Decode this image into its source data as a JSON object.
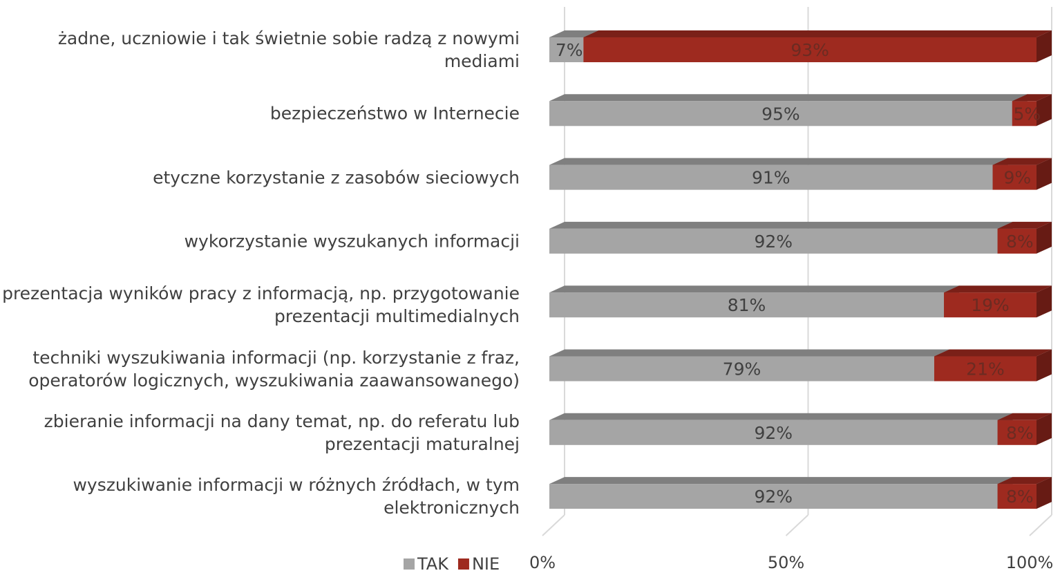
{
  "chart_data": {
    "type": "bar",
    "orientation": "horizontal",
    "stacked": true,
    "three_d": true,
    "categories": [
      "żadne, uczniowie i tak świetnie sobie radzą z nowymi mediami",
      "bezpieczeństwo w Internecie",
      "etyczne korzystanie z zasobów sieciowych",
      "wykorzystanie wyszukanych informacji",
      "prezentacja wyników pracy z informacją, np. przygotowanie prezentacji multimedialnych",
      "techniki wyszukiwania informacji (np. korzystanie z fraz, operatorów logicznych, wyszukiwania zaawansowanego)",
      "zbieranie informacji na dany temat, np. do referatu lub prezentacji maturalnej",
      "wyszukiwanie informacji w różnych źródłach, w tym elektronicznych"
    ],
    "series": [
      {
        "name": "TAK",
        "color": "#a5a5a5",
        "values": [
          7,
          95,
          91,
          92,
          81,
          79,
          92,
          92
        ],
        "value_labels": [
          "7%",
          "95%",
          "91%",
          "92%",
          "81%",
          "79%",
          "92%",
          "92%"
        ]
      },
      {
        "name": "NIE",
        "color": "#9e2a1f",
        "values": [
          93,
          5,
          9,
          8,
          19,
          21,
          8,
          8
        ],
        "value_labels": [
          "93%",
          "5%",
          "9%",
          "8%",
          "19%",
          "21%",
          "8%",
          "8%"
        ]
      }
    ],
    "xlim": [
      0,
      100
    ],
    "xticks": [
      {
        "value": 0,
        "label": "0%"
      },
      {
        "value": 50,
        "label": "50%"
      },
      {
        "value": 100,
        "label": "100%"
      }
    ],
    "grid": true,
    "legend": "bottom-left"
  }
}
